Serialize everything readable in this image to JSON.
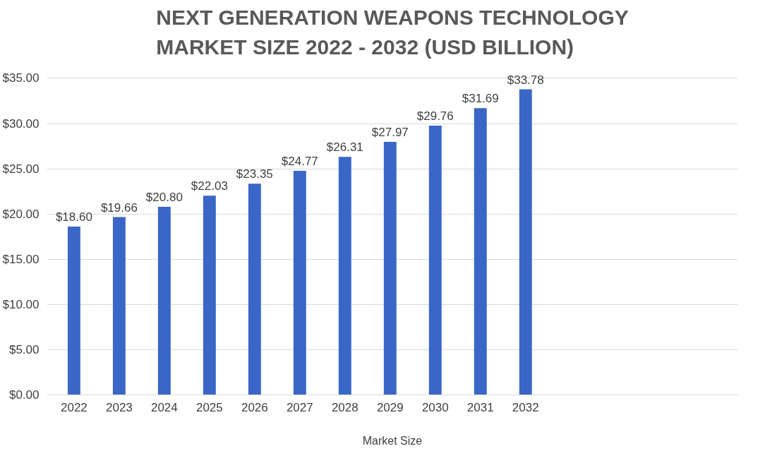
{
  "chart_data": {
    "type": "bar",
    "title": "NEXT GENERATION WEAPONS TECHNOLOGY\nMARKET SIZE 2022 - 2032 (USD BILLION)",
    "xlabel": "Market Size",
    "categories": [
      "2022",
      "2023",
      "2024",
      "2025",
      "2026",
      "2027",
      "2028",
      "2029",
      "2030",
      "2031",
      "2032"
    ],
    "values": [
      18.6,
      19.66,
      20.8,
      22.03,
      23.35,
      24.77,
      26.31,
      27.97,
      29.76,
      31.69,
      33.78
    ],
    "value_labels": [
      "$18.60",
      "$19.66",
      "$20.80",
      "$22.03",
      "$23.35",
      "$24.77",
      "$26.31",
      "$27.97",
      "$29.76",
      "$31.69",
      "$33.78"
    ],
    "color": "#3a66c8",
    "ylim": [
      0,
      35
    ],
    "yticks": [
      {
        "value": 0,
        "label": "$0.00"
      },
      {
        "value": 5,
        "label": "$5.00"
      },
      {
        "value": 10,
        "label": "$10.00"
      },
      {
        "value": 15,
        "label": "$15.00"
      },
      {
        "value": 20,
        "label": "$20.00"
      },
      {
        "value": 25,
        "label": "$25.00"
      },
      {
        "value": 30,
        "label": "$30.00"
      },
      {
        "value": 35,
        "label": "$35.00"
      }
    ],
    "grid": "y"
  }
}
